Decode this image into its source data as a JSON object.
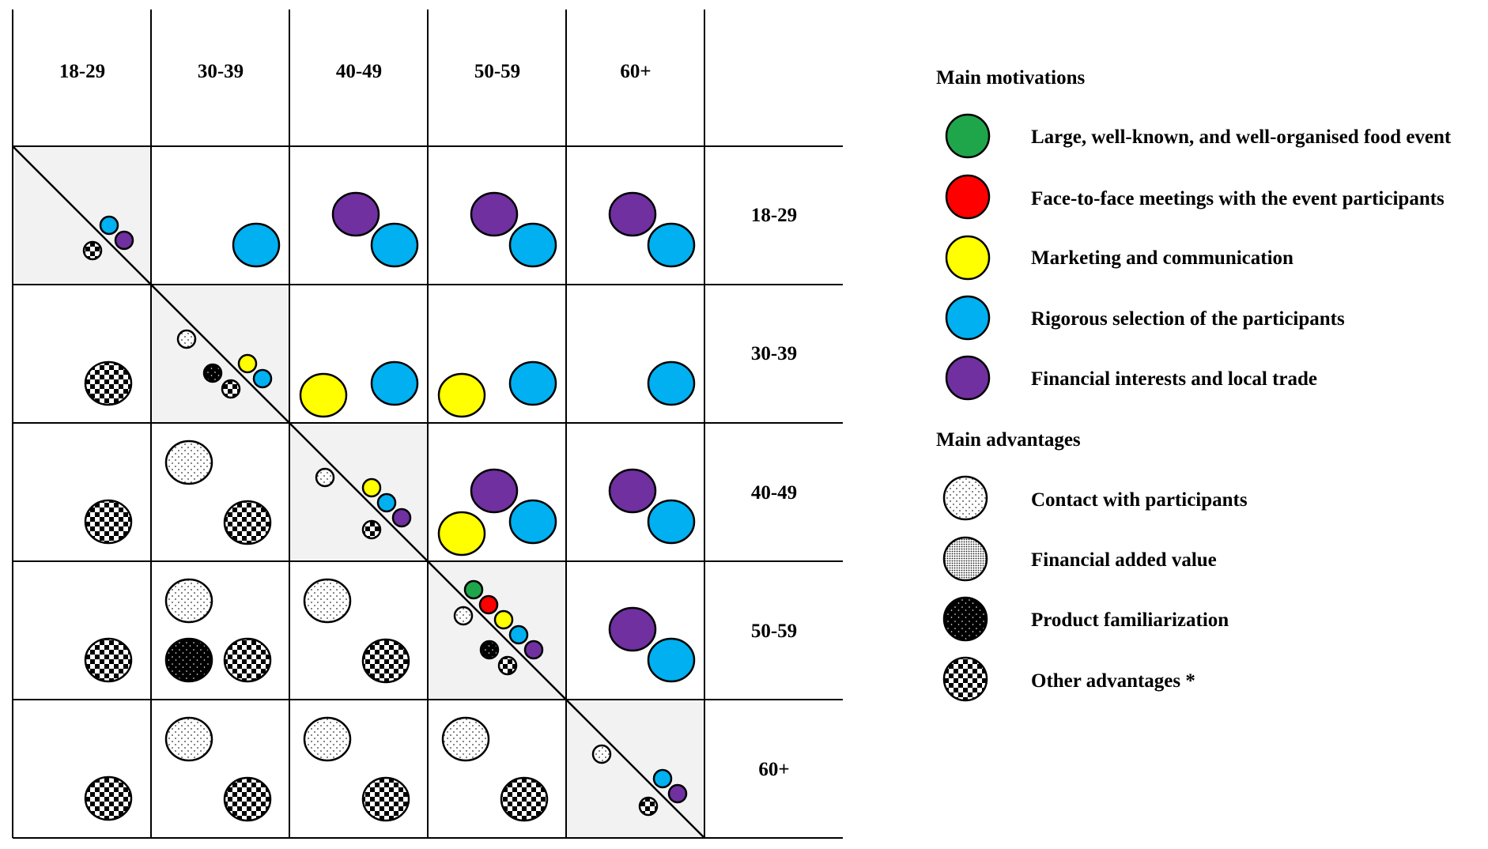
{
  "age_groups": [
    "18-29",
    "30-39",
    "40-49",
    "50-59",
    "60+"
  ],
  "legend": {
    "motivations_title": "Main motivations",
    "motivations": [
      {
        "key": "event",
        "label": "Large, well-known, and well-organised food event",
        "color": "#1fa64a"
      },
      {
        "key": "meetings",
        "label": "Face-to-face meetings with the event participants",
        "color": "#ff0000"
      },
      {
        "key": "marketing",
        "label": "Marketing and communication",
        "color": "#ffff00"
      },
      {
        "key": "selection",
        "label": "Rigorous selection of the participants",
        "color": "#00b0f0"
      },
      {
        "key": "financial",
        "label": "Financial interests and local trade",
        "color": "#7030a0"
      }
    ],
    "advantages_title": "Main advantages",
    "advantages": [
      {
        "key": "contact",
        "label": "Contact with participants",
        "pattern": "sparse-dots"
      },
      {
        "key": "added_value",
        "label": "Financial added value",
        "pattern": "dense-dots"
      },
      {
        "key": "familiarization",
        "label": "Product familiarization",
        "pattern": "black-dots"
      },
      {
        "key": "other",
        "label": "Other advantages *",
        "pattern": "checker"
      }
    ]
  },
  "matrix": {
    "upper_triangle_shows": "motivations",
    "lower_triangle_shows": "advantages",
    "cells": [
      {
        "row": "18-29",
        "col": "18-29",
        "diagonal": true,
        "motivations": [
          "selection",
          "financial"
        ],
        "advantages": [
          "other"
        ]
      },
      {
        "row": "18-29",
        "col": "30-39",
        "motivations": [
          "selection"
        ]
      },
      {
        "row": "18-29",
        "col": "40-49",
        "motivations": [
          "financial",
          "selection"
        ]
      },
      {
        "row": "18-29",
        "col": "50-59",
        "motivations": [
          "financial",
          "selection"
        ]
      },
      {
        "row": "18-29",
        "col": "60+",
        "motivations": [
          "financial",
          "selection"
        ]
      },
      {
        "row": "30-39",
        "col": "18-29",
        "advantages": [
          "other"
        ]
      },
      {
        "row": "30-39",
        "col": "30-39",
        "diagonal": true,
        "motivations": [
          "marketing",
          "selection"
        ],
        "advantages": [
          "contact",
          "familiarization",
          "other"
        ]
      },
      {
        "row": "30-39",
        "col": "40-49",
        "motivations": [
          "marketing",
          "selection"
        ]
      },
      {
        "row": "30-39",
        "col": "50-59",
        "motivations": [
          "marketing",
          "selection"
        ]
      },
      {
        "row": "30-39",
        "col": "60+",
        "motivations": [
          "selection"
        ]
      },
      {
        "row": "40-49",
        "col": "18-29",
        "advantages": [
          "other"
        ]
      },
      {
        "row": "40-49",
        "col": "30-39",
        "advantages": [
          "contact",
          "other"
        ]
      },
      {
        "row": "40-49",
        "col": "40-49",
        "diagonal": true,
        "motivations": [
          "marketing",
          "selection",
          "financial"
        ],
        "advantages": [
          "contact",
          "other"
        ]
      },
      {
        "row": "40-49",
        "col": "50-59",
        "motivations": [
          "financial",
          "marketing",
          "selection"
        ]
      },
      {
        "row": "40-49",
        "col": "60+",
        "motivations": [
          "financial",
          "selection"
        ]
      },
      {
        "row": "50-59",
        "col": "18-29",
        "advantages": [
          "other"
        ]
      },
      {
        "row": "50-59",
        "col": "30-39",
        "advantages": [
          "contact",
          "familiarization",
          "other"
        ]
      },
      {
        "row": "50-59",
        "col": "40-49",
        "advantages": [
          "contact",
          "other"
        ]
      },
      {
        "row": "50-59",
        "col": "50-59",
        "diagonal": true,
        "motivations": [
          "event",
          "meetings",
          "marketing",
          "selection",
          "financial"
        ],
        "advantages": [
          "contact",
          "familiarization",
          "other"
        ]
      },
      {
        "row": "50-59",
        "col": "60+",
        "motivations": [
          "financial",
          "selection"
        ]
      },
      {
        "row": "60+",
        "col": "18-29",
        "advantages": [
          "other"
        ]
      },
      {
        "row": "60+",
        "col": "30-39",
        "advantages": [
          "contact",
          "other"
        ]
      },
      {
        "row": "60+",
        "col": "40-49",
        "advantages": [
          "contact",
          "other"
        ]
      },
      {
        "row": "60+",
        "col": "50-59",
        "advantages": [
          "contact",
          "other"
        ]
      },
      {
        "row": "60+",
        "col": "60+",
        "diagonal": true,
        "motivations": [
          "selection",
          "financial"
        ],
        "advantages": [
          "contact",
          "other"
        ]
      }
    ]
  }
}
